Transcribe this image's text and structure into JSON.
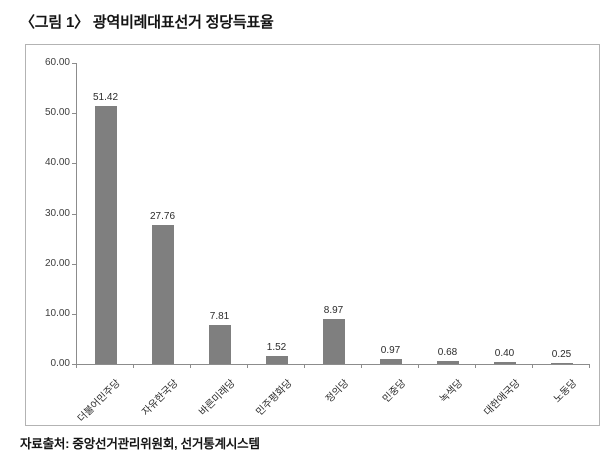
{
  "page": {
    "title": "〈그림 1〉 광역비례대표선거 정당득표율",
    "source_note": "자료출처: 중앙선거관리위원회, 선거통계시스템"
  },
  "colors": {
    "bar": "#7f7f7f",
    "axis": "#8c8c8c",
    "chart_border": "#b3b3b3",
    "text": "#2b2b2b"
  },
  "chart_data": {
    "type": "bar",
    "title": "〈그림 1〉 광역비례대표선거 정당득표율",
    "categories": [
      "더불어민주당",
      "자유한국당",
      "바른미래당",
      "민주평화당",
      "정의당",
      "민중당",
      "녹색당",
      "대한애국당",
      "노동당"
    ],
    "values": [
      51.42,
      27.76,
      7.81,
      1.52,
      8.97,
      0.97,
      0.68,
      0.4,
      0.25
    ],
    "value_labels": [
      "51.42",
      "27.76",
      "7.81",
      "1.52",
      "8.97",
      "0.97",
      "0.68",
      "0.40",
      "0.25"
    ],
    "xlabel": "",
    "ylabel": "",
    "ylim": [
      0,
      60
    ],
    "ytick_step": 10,
    "ytick_labels": [
      "0.00",
      "10.00",
      "20.00",
      "30.00",
      "40.00",
      "50.00",
      "60.00"
    ],
    "grid": false,
    "legend": false,
    "x_label_rotation_deg": -45,
    "source": "자료출처: 중앙선거관리위원회, 선거통계시스템"
  }
}
